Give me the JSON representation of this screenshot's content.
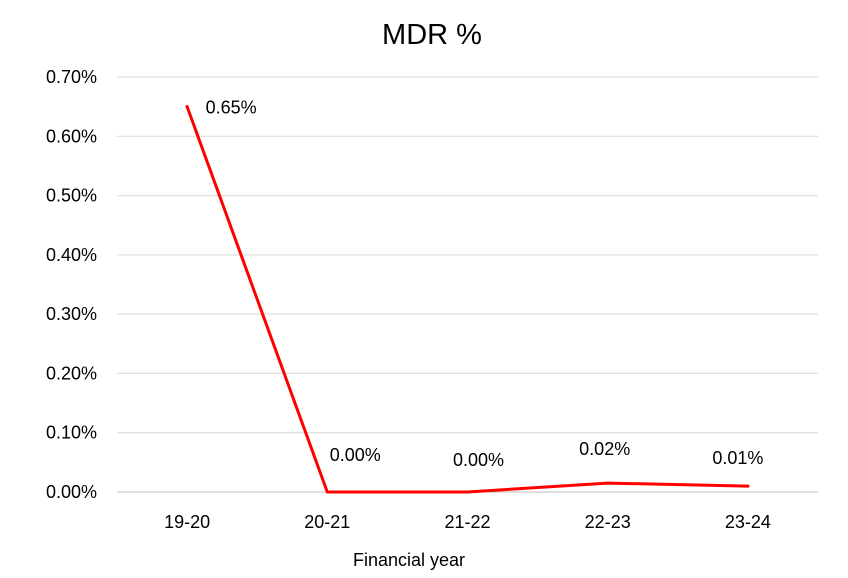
{
  "chart_data": {
    "type": "line",
    "title": "MDR %",
    "xlabel": "Financial year",
    "ylabel": "",
    "categories": [
      "19-20",
      "20-21",
      "21-22",
      "22-23",
      "23-24"
    ],
    "series": [
      {
        "values": [
          0.0065,
          0.0,
          0.0,
          0.00015,
          0.0001
        ],
        "data_labels": [
          "0.65%",
          "0.00%",
          "0.00%",
          "0.02%",
          "0.01%"
        ],
        "color": "#ff0000"
      }
    ],
    "ylim": [
      0,
      0.007
    ],
    "y_ticks": [
      0,
      0.001,
      0.002,
      0.003,
      0.004,
      0.005,
      0.006,
      0.007
    ],
    "y_tick_labels": [
      "0.00%",
      "0.10%",
      "0.20%",
      "0.30%",
      "0.40%",
      "0.50%",
      "0.60%",
      "0.70%"
    ],
    "grid": true,
    "legend": "none"
  }
}
